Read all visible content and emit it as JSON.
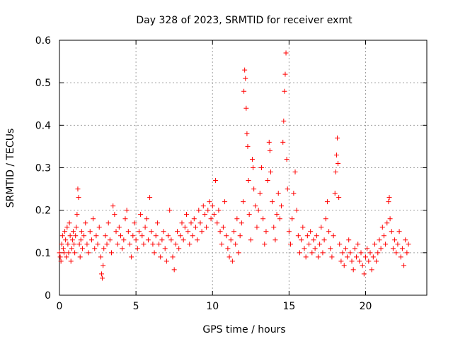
{
  "chart_data": {
    "type": "scatter",
    "title": "Day 328 of 2023, SRMTID for receiver exmt",
    "xlabel": "GPS time / hours",
    "ylabel": "SRMTID / TECUs",
    "xlim": [
      0,
      24
    ],
    "ylim": [
      0,
      0.6
    ],
    "xticks": [
      0,
      5,
      10,
      15,
      20
    ],
    "xtick_labels": [
      "0",
      "5",
      "10",
      "15",
      "20"
    ],
    "yticks": [
      0,
      0.1,
      0.2,
      0.3,
      0.4,
      0.5,
      0.6
    ],
    "ytick_labels": [
      "0",
      "0.1",
      "0.2",
      "0.3",
      "0.4",
      "0.5",
      "0.6"
    ],
    "grid": true,
    "marker": "+",
    "series": [
      {
        "name": "SRMTID",
        "color": "#ff0000",
        "points": [
          [
            0.0,
            0.1
          ],
          [
            0.05,
            0.09
          ],
          [
            0.1,
            0.08
          ],
          [
            0.15,
            0.12
          ],
          [
            0.2,
            0.14
          ],
          [
            0.25,
            0.11
          ],
          [
            0.3,
            0.1
          ],
          [
            0.35,
            0.15
          ],
          [
            0.4,
            0.13
          ],
          [
            0.45,
            0.09
          ],
          [
            0.5,
            0.16
          ],
          [
            0.55,
            0.12
          ],
          [
            0.6,
            0.1
          ],
          [
            0.65,
            0.17
          ],
          [
            0.7,
            0.14
          ],
          [
            0.75,
            0.08
          ],
          [
            0.8,
            0.11
          ],
          [
            0.85,
            0.13
          ],
          [
            0.9,
            0.15
          ],
          [
            0.95,
            0.12
          ],
          [
            1.0,
            0.1
          ],
          [
            1.05,
            0.14
          ],
          [
            1.1,
            0.16
          ],
          [
            1.15,
            0.19
          ],
          [
            1.2,
            0.25
          ],
          [
            1.25,
            0.23
          ],
          [
            1.3,
            0.12
          ],
          [
            1.35,
            0.09
          ],
          [
            1.4,
            0.13
          ],
          [
            1.45,
            0.15
          ],
          [
            1.5,
            0.11
          ],
          [
            1.6,
            0.14
          ],
          [
            1.7,
            0.17
          ],
          [
            1.8,
            0.12
          ],
          [
            1.9,
            0.1
          ],
          [
            2.0,
            0.15
          ],
          [
            2.1,
            0.13
          ],
          [
            2.2,
            0.18
          ],
          [
            2.3,
            0.11
          ],
          [
            2.4,
            0.14
          ],
          [
            2.5,
            0.12
          ],
          [
            2.6,
            0.16
          ],
          [
            2.7,
            0.09
          ],
          [
            2.75,
            0.05
          ],
          [
            2.8,
            0.04
          ],
          [
            2.85,
            0.07
          ],
          [
            2.9,
            0.11
          ],
          [
            3.0,
            0.14
          ],
          [
            3.1,
            0.12
          ],
          [
            3.2,
            0.17
          ],
          [
            3.3,
            0.13
          ],
          [
            3.4,
            0.1
          ],
          [
            3.5,
            0.21
          ],
          [
            3.6,
            0.19
          ],
          [
            3.7,
            0.15
          ],
          [
            3.8,
            0.12
          ],
          [
            3.9,
            0.16
          ],
          [
            4.0,
            0.14
          ],
          [
            4.1,
            0.11
          ],
          [
            4.2,
            0.13
          ],
          [
            4.3,
            0.18
          ],
          [
            4.4,
            0.2
          ],
          [
            4.5,
            0.15
          ],
          [
            4.6,
            0.12
          ],
          [
            4.7,
            0.09
          ],
          [
            4.8,
            0.14
          ],
          [
            4.9,
            0.17
          ],
          [
            5.0,
            0.13
          ],
          [
            5.1,
            0.11
          ],
          [
            5.2,
            0.15
          ],
          [
            5.3,
            0.19
          ],
          [
            5.4,
            0.14
          ],
          [
            5.5,
            0.12
          ],
          [
            5.6,
            0.16
          ],
          [
            5.7,
            0.18
          ],
          [
            5.8,
            0.13
          ],
          [
            5.9,
            0.23
          ],
          [
            6.0,
            0.15
          ],
          [
            6.1,
            0.12
          ],
          [
            6.2,
            0.1
          ],
          [
            6.3,
            0.14
          ],
          [
            6.4,
            0.17
          ],
          [
            6.5,
            0.12
          ],
          [
            6.6,
            0.09
          ],
          [
            6.7,
            0.13
          ],
          [
            6.8,
            0.15
          ],
          [
            6.9,
            0.11
          ],
          [
            7.0,
            0.08
          ],
          [
            7.1,
            0.14
          ],
          [
            7.2,
            0.2
          ],
          [
            7.3,
            0.13
          ],
          [
            7.4,
            0.09
          ],
          [
            7.5,
            0.06
          ],
          [
            7.6,
            0.12
          ],
          [
            7.7,
            0.15
          ],
          [
            7.8,
            0.11
          ],
          [
            7.9,
            0.14
          ],
          [
            8.0,
            0.17
          ],
          [
            8.1,
            0.13
          ],
          [
            8.2,
            0.16
          ],
          [
            8.3,
            0.19
          ],
          [
            8.4,
            0.15
          ],
          [
            8.5,
            0.12
          ],
          [
            8.6,
            0.17
          ],
          [
            8.7,
            0.14
          ],
          [
            8.8,
            0.18
          ],
          [
            8.9,
            0.16
          ],
          [
            9.0,
            0.13
          ],
          [
            9.1,
            0.2
          ],
          [
            9.2,
            0.17
          ],
          [
            9.3,
            0.15
          ],
          [
            9.4,
            0.21
          ],
          [
            9.5,
            0.19
          ],
          [
            9.6,
            0.16
          ],
          [
            9.7,
            0.2
          ],
          [
            9.8,
            0.22
          ],
          [
            9.9,
            0.18
          ],
          [
            10.0,
            0.21
          ],
          [
            10.1,
            0.19
          ],
          [
            10.2,
            0.27
          ],
          [
            10.3,
            0.17
          ],
          [
            10.4,
            0.2
          ],
          [
            10.5,
            0.15
          ],
          [
            10.6,
            0.12
          ],
          [
            10.7,
            0.16
          ],
          [
            10.8,
            0.22
          ],
          [
            10.9,
            0.14
          ],
          [
            11.0,
            0.11
          ],
          [
            11.1,
            0.09
          ],
          [
            11.2,
            0.13
          ],
          [
            11.3,
            0.08
          ],
          [
            11.4,
            0.15
          ],
          [
            11.5,
            0.12
          ],
          [
            11.6,
            0.18
          ],
          [
            11.7,
            0.1
          ],
          [
            11.8,
            0.14
          ],
          [
            11.9,
            0.17
          ],
          [
            12.0,
            0.22
          ],
          [
            12.05,
            0.48
          ],
          [
            12.1,
            0.53
          ],
          [
            12.15,
            0.51
          ],
          [
            12.2,
            0.44
          ],
          [
            12.25,
            0.38
          ],
          [
            12.3,
            0.35
          ],
          [
            12.35,
            0.27
          ],
          [
            12.4,
            0.19
          ],
          [
            12.5,
            0.13
          ],
          [
            12.6,
            0.32
          ],
          [
            12.65,
            0.3
          ],
          [
            12.7,
            0.25
          ],
          [
            12.8,
            0.21
          ],
          [
            12.9,
            0.16
          ],
          [
            13.0,
            0.2
          ],
          [
            13.1,
            0.24
          ],
          [
            13.2,
            0.3
          ],
          [
            13.3,
            0.18
          ],
          [
            13.4,
            0.12
          ],
          [
            13.5,
            0.15
          ],
          [
            13.6,
            0.27
          ],
          [
            13.7,
            0.36
          ],
          [
            13.75,
            0.34
          ],
          [
            13.8,
            0.29
          ],
          [
            13.9,
            0.22
          ],
          [
            14.0,
            0.16
          ],
          [
            14.1,
            0.13
          ],
          [
            14.2,
            0.19
          ],
          [
            14.3,
            0.24
          ],
          [
            14.4,
            0.18
          ],
          [
            14.5,
            0.21
          ],
          [
            14.6,
            0.36
          ],
          [
            14.65,
            0.41
          ],
          [
            14.7,
            0.48
          ],
          [
            14.75,
            0.52
          ],
          [
            14.8,
            0.57
          ],
          [
            14.85,
            0.32
          ],
          [
            14.9,
            0.25
          ],
          [
            15.0,
            0.15
          ],
          [
            15.1,
            0.12
          ],
          [
            15.2,
            0.18
          ],
          [
            15.3,
            0.24
          ],
          [
            15.4,
            0.29
          ],
          [
            15.5,
            0.2
          ],
          [
            15.6,
            0.14
          ],
          [
            15.7,
            0.1
          ],
          [
            15.8,
            0.13
          ],
          [
            15.9,
            0.16
          ],
          [
            16.0,
            0.11
          ],
          [
            16.1,
            0.09
          ],
          [
            16.2,
            0.14
          ],
          [
            16.3,
            0.12
          ],
          [
            16.4,
            0.15
          ],
          [
            16.5,
            0.1
          ],
          [
            16.6,
            0.13
          ],
          [
            16.7,
            0.11
          ],
          [
            16.8,
            0.14
          ],
          [
            16.9,
            0.09
          ],
          [
            17.0,
            0.12
          ],
          [
            17.1,
            0.16
          ],
          [
            17.2,
            0.1
          ],
          [
            17.3,
            0.13
          ],
          [
            17.4,
            0.18
          ],
          [
            17.5,
            0.22
          ],
          [
            17.6,
            0.15
          ],
          [
            17.7,
            0.11
          ],
          [
            17.8,
            0.09
          ],
          [
            17.9,
            0.14
          ],
          [
            18.0,
            0.24
          ],
          [
            18.05,
            0.29
          ],
          [
            18.1,
            0.33
          ],
          [
            18.15,
            0.37
          ],
          [
            18.2,
            0.31
          ],
          [
            18.25,
            0.23
          ],
          [
            18.3,
            0.12
          ],
          [
            18.4,
            0.08
          ],
          [
            18.5,
            0.1
          ],
          [
            18.6,
            0.07
          ],
          [
            18.7,
            0.11
          ],
          [
            18.8,
            0.09
          ],
          [
            18.9,
            0.13
          ],
          [
            19.0,
            0.1
          ],
          [
            19.1,
            0.08
          ],
          [
            19.2,
            0.06
          ],
          [
            19.3,
            0.11
          ],
          [
            19.4,
            0.09
          ],
          [
            19.5,
            0.12
          ],
          [
            19.6,
            0.08
          ],
          [
            19.7,
            0.1
          ],
          [
            19.8,
            0.07
          ],
          [
            19.9,
            0.05
          ],
          [
            20.0,
            0.09
          ],
          [
            20.1,
            0.11
          ],
          [
            20.2,
            0.08
          ],
          [
            20.3,
            0.1
          ],
          [
            20.4,
            0.06
          ],
          [
            20.5,
            0.09
          ],
          [
            20.6,
            0.12
          ],
          [
            20.7,
            0.08
          ],
          [
            20.8,
            0.1
          ],
          [
            20.9,
            0.13
          ],
          [
            21.0,
            0.11
          ],
          [
            21.1,
            0.16
          ],
          [
            21.2,
            0.14
          ],
          [
            21.3,
            0.12
          ],
          [
            21.4,
            0.17
          ],
          [
            21.5,
            0.22
          ],
          [
            21.55,
            0.23
          ],
          [
            21.6,
            0.18
          ],
          [
            21.7,
            0.15
          ],
          [
            21.8,
            0.11
          ],
          [
            21.9,
            0.13
          ],
          [
            22.0,
            0.1
          ],
          [
            22.1,
            0.12
          ],
          [
            22.2,
            0.15
          ],
          [
            22.3,
            0.09
          ],
          [
            22.4,
            0.11
          ],
          [
            22.5,
            0.07
          ],
          [
            22.6,
            0.13
          ],
          [
            22.7,
            0.1
          ],
          [
            22.8,
            0.12
          ]
        ]
      }
    ]
  }
}
